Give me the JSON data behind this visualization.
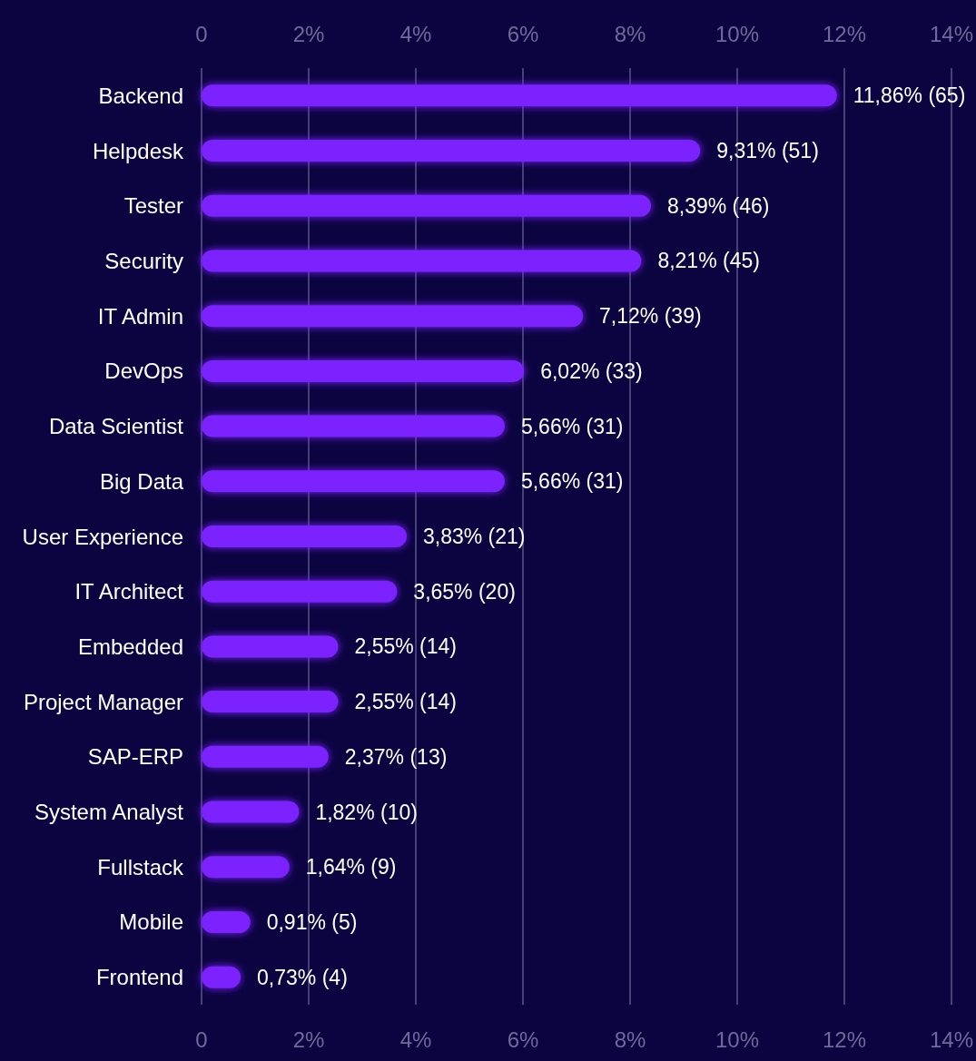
{
  "chart_data": {
    "type": "bar",
    "orientation": "horizontal",
    "categories": [
      "Backend",
      "Helpdesk",
      "Tester",
      "Security",
      "IT Admin",
      "DevOps",
      "Data Scientist",
      "Big Data",
      "User Experience",
      "IT Architect",
      "Embedded",
      "Project Manager",
      "SAP-ERP",
      "System Analyst",
      "Fullstack",
      "Mobile",
      "Frontend"
    ],
    "values": [
      11.86,
      9.31,
      8.39,
      8.21,
      7.12,
      6.02,
      5.66,
      5.66,
      3.83,
      3.65,
      2.55,
      2.55,
      2.37,
      1.82,
      1.64,
      0.91,
      0.73
    ],
    "value_labels": [
      "11,86% (65)",
      "9,31% (51)",
      "8,39% (46)",
      "8,21% (45)",
      "7,12% (39)",
      "6,02% (33)",
      "5,66% (31)",
      "5,66% (31)",
      "3,83% (21)",
      "3,65% (20)",
      "2,55% (14)",
      "2,55% (14)",
      "2,37% (13)",
      "1,82% (10)",
      "1,64% (9)",
      "0,91% (5)",
      "0,73% (4)"
    ],
    "color": "#7b22ff",
    "xlim": [
      0,
      14
    ],
    "xticks": [
      0,
      {
        "value": 2,
        "label": "2%"
      },
      {
        "value": 4,
        "label": "4%"
      },
      {
        "value": 6,
        "label": "6%"
      },
      {
        "value": 8,
        "label": "8%"
      },
      {
        "value": 10,
        "label": "10%"
      },
      {
        "value": 12,
        "label": "12%"
      },
      {
        "value": 14,
        "label": "14%"
      }
    ],
    "x2lim": [
      0,
      14
    ],
    "x2ticks": [
      0,
      {
        "value": 2,
        "label": "2%"
      },
      {
        "value": 4,
        "label": "4%"
      },
      {
        "value": 6,
        "label": "6%"
      },
      {
        "value": 8,
        "label": "8%"
      },
      {
        "value": 10,
        "label": "10%"
      },
      {
        "value": 12,
        "label": "12%"
      },
      {
        "value": 14,
        "label": "14%"
      }
    ],
    "grid": "x"
  }
}
